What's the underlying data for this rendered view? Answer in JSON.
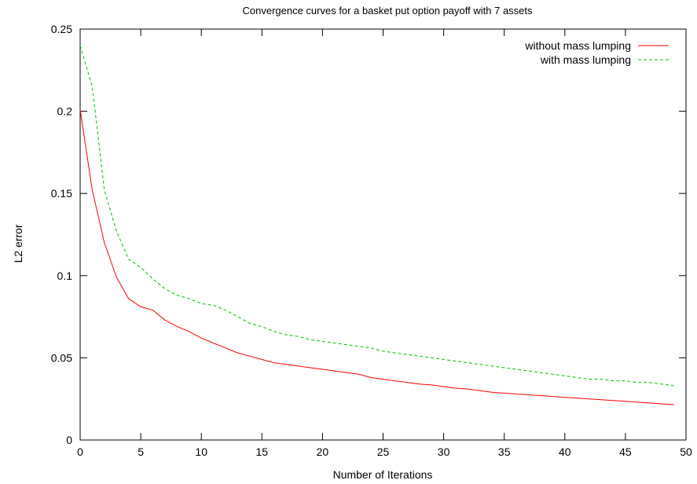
{
  "chart_data": {
    "type": "line",
    "title": "Convergence curves for a basket put option payoff with 7 assets",
    "xlabel": "Number of Iterations",
    "ylabel": "L2 error",
    "xlim": [
      0,
      50
    ],
    "ylim": [
      0,
      0.25
    ],
    "xticks": [
      "0",
      "5",
      "10",
      "15",
      "20",
      "25",
      "30",
      "35",
      "40",
      "45",
      "50"
    ],
    "yticks": [
      "0",
      "0.05",
      "0.1",
      "0.15",
      "0.2",
      "0.25"
    ],
    "grid": false,
    "legend_position": "top-right",
    "series": [
      {
        "name": "without mass lumping",
        "color": "#ff0000",
        "dash": "solid",
        "x": [
          0,
          1,
          2,
          3,
          4,
          5,
          6,
          7,
          8,
          9,
          10,
          11,
          12,
          13,
          14,
          15,
          16,
          17,
          18,
          19,
          20,
          21,
          22,
          23,
          24,
          25,
          26,
          27,
          28,
          29,
          30,
          31,
          32,
          33,
          34,
          35,
          36,
          37,
          38,
          39,
          40,
          41,
          42,
          43,
          44,
          45,
          46,
          47,
          48,
          49
        ],
        "y": [
          0.201,
          0.152,
          0.12,
          0.099,
          0.086,
          0.081,
          0.079,
          0.073,
          0.069,
          0.066,
          0.062,
          0.059,
          0.056,
          0.053,
          0.051,
          0.049,
          0.047,
          0.046,
          0.045,
          0.044,
          0.043,
          0.042,
          0.041,
          0.04,
          0.038,
          0.037,
          0.036,
          0.035,
          0.034,
          0.0335,
          0.0325,
          0.0315,
          0.031,
          0.03,
          0.029,
          0.0285,
          0.028,
          0.0275,
          0.027,
          0.0265,
          0.026,
          0.0255,
          0.025,
          0.0245,
          0.024,
          0.0235,
          0.023,
          0.0225,
          0.022,
          0.0215
        ]
      },
      {
        "name": "with mass lumping",
        "color": "#00c000",
        "dash": "dashed",
        "x": [
          0,
          1,
          2,
          3,
          4,
          5,
          6,
          7,
          8,
          9,
          10,
          11,
          12,
          13,
          14,
          15,
          16,
          17,
          18,
          19,
          20,
          21,
          22,
          23,
          24,
          25,
          26,
          27,
          28,
          29,
          30,
          31,
          32,
          33,
          34,
          35,
          36,
          37,
          38,
          39,
          40,
          41,
          42,
          43,
          44,
          45,
          46,
          47,
          48,
          49
        ],
        "y": [
          0.24,
          0.215,
          0.152,
          0.127,
          0.11,
          0.105,
          0.098,
          0.092,
          0.088,
          0.086,
          0.083,
          0.082,
          0.079,
          0.075,
          0.071,
          0.069,
          0.066,
          0.064,
          0.063,
          0.061,
          0.06,
          0.059,
          0.058,
          0.057,
          0.056,
          0.054,
          0.053,
          0.052,
          0.051,
          0.05,
          0.049,
          0.048,
          0.047,
          0.046,
          0.045,
          0.044,
          0.043,
          0.042,
          0.041,
          0.04,
          0.039,
          0.038,
          0.037,
          0.037,
          0.036,
          0.036,
          0.035,
          0.035,
          0.034,
          0.033
        ]
      }
    ]
  }
}
